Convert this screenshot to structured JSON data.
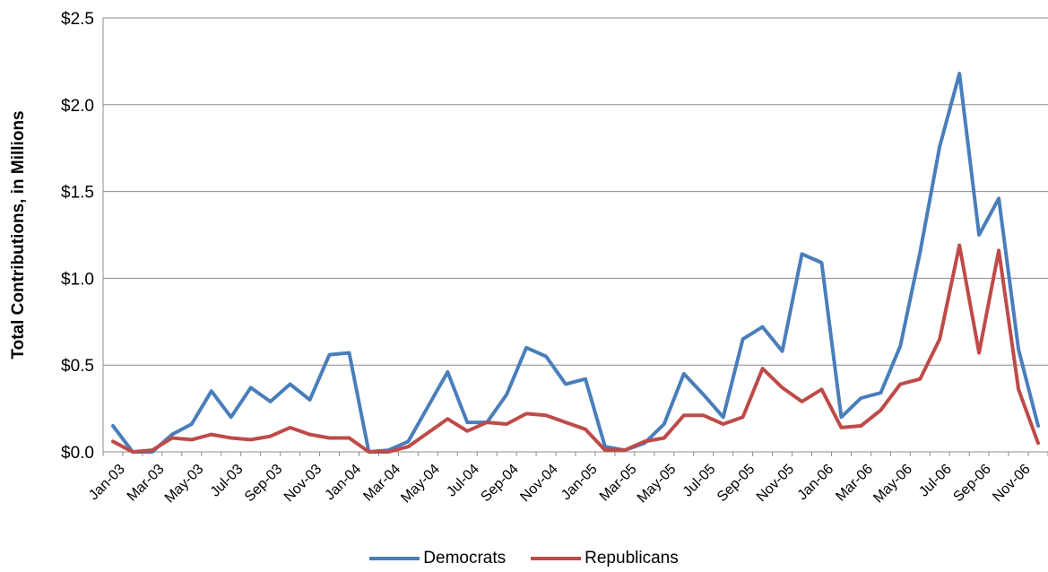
{
  "chart_data": {
    "type": "line",
    "title": "",
    "ylabel": "Total Contributions, in Millions",
    "xlabel": "",
    "ylim": [
      0,
      2.5
    ],
    "yticks": [
      0,
      0.5,
      1.0,
      1.5,
      2.0,
      2.5
    ],
    "ytick_labels": [
      "$0.0",
      "$0.5",
      "$1.0",
      "$1.5",
      "$2.0",
      "$2.5"
    ],
    "x": [
      "Jan-03",
      "Feb-03",
      "Mar-03",
      "Apr-03",
      "May-03",
      "Jun-03",
      "Jul-03",
      "Aug-03",
      "Sep-03",
      "Oct-03",
      "Nov-03",
      "Dec-03",
      "Jan-04",
      "Feb-04",
      "Mar-04",
      "Apr-04",
      "May-04",
      "Jun-04",
      "Jul-04",
      "Aug-04",
      "Sep-04",
      "Oct-04",
      "Nov-04",
      "Dec-04",
      "Jan-05",
      "Feb-05",
      "Mar-05",
      "Apr-05",
      "May-05",
      "Jun-05",
      "Jul-05",
      "Aug-05",
      "Sep-05",
      "Oct-05",
      "Nov-05",
      "Dec-05",
      "Jan-06",
      "Feb-06",
      "Mar-06",
      "Apr-06",
      "May-06",
      "Jun-06",
      "Jul-06",
      "Aug-06",
      "Sep-06",
      "Oct-06",
      "Nov-06",
      "Dec-06"
    ],
    "xtick_labels": [
      "Jan-03",
      "Mar-03",
      "May-03",
      "Jul-03",
      "Sep-03",
      "Nov-03",
      "Jan-04",
      "Mar-04",
      "May-04",
      "Jul-04",
      "Sep-04",
      "Nov-04",
      "Jan-05",
      "Mar-05",
      "May-05",
      "Jul-05",
      "Sep-05",
      "Nov-05",
      "Jan-06",
      "Mar-06",
      "May-06",
      "Jul-06",
      "Sep-06",
      "Nov-06"
    ],
    "grid": "horizontal",
    "legend_position": "bottom",
    "series": [
      {
        "name": "Democrats",
        "color": "#4a7ebb",
        "values": [
          0.15,
          0.0,
          0.0,
          0.1,
          0.16,
          0.35,
          0.2,
          0.37,
          0.29,
          0.39,
          0.3,
          0.56,
          0.57,
          0.0,
          0.01,
          0.06,
          0.26,
          0.46,
          0.17,
          0.17,
          0.33,
          0.6,
          0.55,
          0.39,
          0.42,
          0.03,
          0.01,
          0.05,
          0.16,
          0.45,
          0.33,
          0.2,
          0.65,
          0.72,
          0.58,
          1.14,
          1.09,
          0.2,
          0.31,
          0.34,
          0.61,
          1.15,
          1.76,
          2.18,
          1.25,
          1.46,
          0.59,
          0.15
        ]
      },
      {
        "name": "Republicans",
        "color": "#be4b48",
        "values": [
          0.06,
          0.0,
          0.01,
          0.08,
          0.07,
          0.1,
          0.08,
          0.07,
          0.09,
          0.14,
          0.1,
          0.08,
          0.08,
          0.0,
          0.0,
          0.03,
          0.11,
          0.19,
          0.12,
          0.17,
          0.16,
          0.22,
          0.21,
          0.17,
          0.13,
          0.01,
          0.01,
          0.06,
          0.08,
          0.21,
          0.21,
          0.16,
          0.2,
          0.48,
          0.37,
          0.29,
          0.36,
          0.14,
          0.15,
          0.24,
          0.39,
          0.42,
          0.65,
          1.19,
          0.57,
          1.16,
          0.36,
          0.05
        ]
      }
    ]
  }
}
